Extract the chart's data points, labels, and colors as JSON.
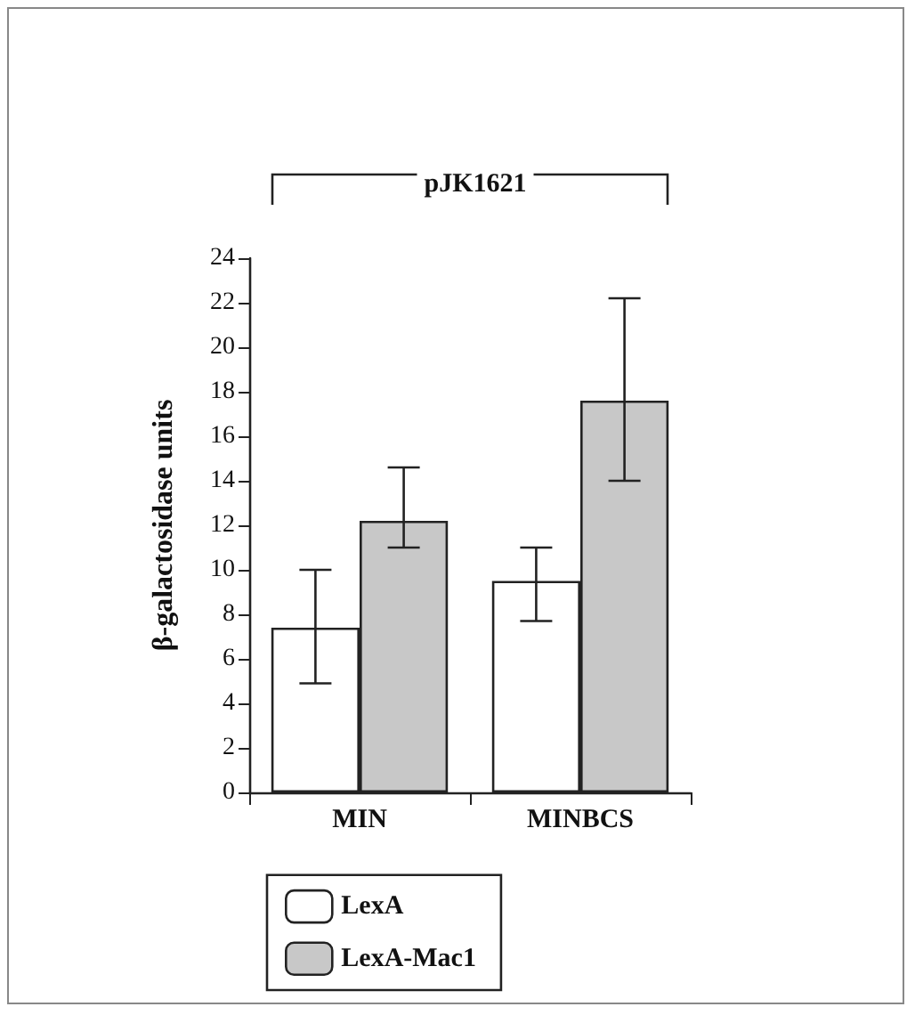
{
  "chart_data": {
    "type": "bar",
    "title": "pJK1621",
    "ylabel": "β-galactosidase units",
    "categories": [
      "MIN",
      "MINBCS"
    ],
    "series": [
      {
        "name": "LexA",
        "color": "#ffffff",
        "values": [
          7.4,
          9.5
        ],
        "errors": [
          [
            4.9,
            10
          ],
          [
            7.7,
            11
          ]
        ]
      },
      {
        "name": "LexA-Mac1",
        "color": "#c8c8c8",
        "values": [
          12.2,
          17.6
        ],
        "errors": [
          [
            11,
            14.6
          ],
          [
            14,
            22.2
          ]
        ]
      }
    ],
    "ylim": [
      0,
      24
    ],
    "yticks": [
      0,
      2,
      4,
      6,
      8,
      10,
      12,
      14,
      16,
      18,
      20,
      22,
      24
    ],
    "grid": false,
    "legend": "bottom"
  }
}
